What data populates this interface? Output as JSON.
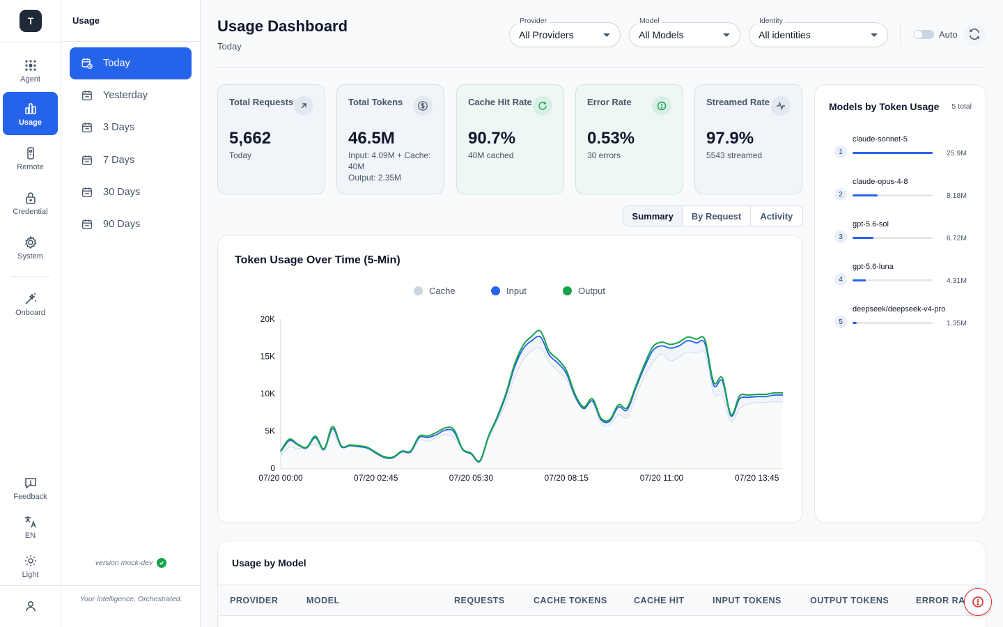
{
  "rail": {
    "logo": "T",
    "items": [
      {
        "label": "Agent",
        "icon": "agent-grid-icon"
      },
      {
        "label": "Usage",
        "icon": "bar-chart-icon",
        "active": true
      },
      {
        "label": "Remote",
        "icon": "remote-icon"
      },
      {
        "label": "Credential",
        "icon": "lock-icon"
      },
      {
        "label": "System",
        "icon": "gear-icon"
      },
      {
        "label": "Onboard",
        "icon": "magic-wand-icon"
      }
    ],
    "bottom": [
      {
        "label": "Feedback",
        "icon": "feedback-icon"
      },
      {
        "label": "EN",
        "icon": "translate-icon"
      },
      {
        "label": "Light",
        "icon": "sun-icon"
      }
    ],
    "profile_icon": "user-icon"
  },
  "subnav": {
    "title": "Usage",
    "ranges": [
      "Today",
      "Yesterday",
      "3 Days",
      "7 Days",
      "30 Days",
      "90 Days"
    ],
    "active": "Today",
    "version": "version mock-dev",
    "tagline": "Your Intelligence, Orchestrated."
  },
  "header": {
    "title": "Usage Dashboard",
    "subtitle": "Today",
    "filters": [
      {
        "label": "Provider",
        "value": "All Providers"
      },
      {
        "label": "Model",
        "value": "All Models"
      },
      {
        "label": "Identity",
        "value": "All identities"
      }
    ],
    "auto_label": "Auto",
    "auto_enabled": false
  },
  "stats": [
    {
      "label": "Total Requests",
      "value": "5,662",
      "sub": "Today",
      "icon": "arrow-up-right-icon",
      "tone": "slate"
    },
    {
      "label": "Total Tokens",
      "value": "46.5M",
      "sub": "Input: 4.09M + Cache: 40M",
      "sub2": "Output: 2.35M",
      "icon": "dollar-icon",
      "tone": "slate"
    },
    {
      "label": "Cache Hit Rate",
      "value": "90.7%",
      "sub": "40M cached",
      "icon": "refresh-icon",
      "tone": "mint"
    },
    {
      "label": "Error Rate",
      "value": "0.53%",
      "sub": "30 errors",
      "icon": "alert-circle-icon",
      "tone": "mint"
    },
    {
      "label": "Streamed Rate",
      "value": "97.9%",
      "sub": "5543 streamed",
      "icon": "activity-icon",
      "tone": "slate"
    }
  ],
  "tabs": [
    "Summary",
    "By Request",
    "Activity"
  ],
  "active_tab": "Summary",
  "chart_data": {
    "type": "line",
    "title": "Token Usage Over Time (5-Min)",
    "xlabel": "",
    "ylabel": "",
    "x_ticks": [
      "07/20 00:00",
      "07/20 02:45",
      "07/20 05:30",
      "07/20 08:15",
      "07/20 11:00",
      "07/20 13:45"
    ],
    "y_ticks": [
      "0",
      "5K",
      "10K",
      "15K",
      "20K"
    ],
    "ylim": [
      0,
      20000
    ],
    "xlim_minutes": [
      0,
      870
    ],
    "legend": "top",
    "grid": false,
    "x_minutes": [
      0,
      15,
      30,
      45,
      60,
      75,
      90,
      105,
      120,
      135,
      150,
      165,
      180,
      195,
      210,
      225,
      240,
      255,
      270,
      285,
      300,
      315,
      330,
      345,
      360,
      375,
      390,
      405,
      420,
      435,
      450,
      465,
      480,
      495,
      510,
      525,
      540,
      555,
      570,
      585,
      600,
      615,
      630,
      645,
      660,
      675,
      690,
      705,
      720,
      735,
      750,
      765,
      780,
      795,
      810,
      825,
      840,
      855,
      870
    ],
    "series": [
      {
        "name": "Cache",
        "color": "#cbd5e1",
        "values": [
          1700,
          2800,
          2600,
          2900,
          3200,
          2400,
          4600,
          2800,
          3000,
          2800,
          2600,
          2300,
          1600,
          1500,
          2200,
          2000,
          3700,
          3600,
          4100,
          4500,
          4100,
          2600,
          2000,
          1000,
          3800,
          6300,
          8700,
          12200,
          14500,
          15800,
          16100,
          14300,
          13000,
          11900,
          9600,
          7900,
          8900,
          6000,
          5800,
          7200,
          6800,
          9600,
          12300,
          14200,
          15300,
          14400,
          14900,
          15600,
          15400,
          15400,
          10000,
          9800,
          6200,
          8000,
          8600,
          8800,
          8800,
          8900,
          8900
        ]
      },
      {
        "name": "Input",
        "color": "#2563eb",
        "values": [
          2200,
          3700,
          3100,
          2700,
          4100,
          2500,
          5300,
          2900,
          3000,
          2900,
          2700,
          2000,
          1400,
          1400,
          2200,
          2200,
          4100,
          4100,
          4500,
          5100,
          4900,
          2500,
          1900,
          900,
          4200,
          6700,
          9700,
          13500,
          16000,
          17100,
          17600,
          15200,
          14100,
          12700,
          9600,
          8000,
          9000,
          6500,
          6300,
          8200,
          7800,
          10700,
          13500,
          15800,
          16400,
          16100,
          16400,
          17100,
          16800,
          16700,
          11100,
          11700,
          7000,
          9300,
          9500,
          9600,
          9600,
          9800,
          9800
        ]
      },
      {
        "name": "Output",
        "color": "#16a34a",
        "values": [
          2300,
          3900,
          3200,
          2800,
          4300,
          2600,
          5600,
          3000,
          3100,
          3000,
          2800,
          2100,
          1500,
          1500,
          2300,
          2300,
          4300,
          4300,
          4800,
          5400,
          5200,
          2600,
          2000,
          1000,
          4300,
          6900,
          10000,
          13900,
          16500,
          17700,
          18400,
          15700,
          14600,
          13100,
          9900,
          8200,
          9300,
          6700,
          6500,
          8500,
          8100,
          11000,
          13900,
          16300,
          16900,
          16600,
          16900,
          17600,
          17300,
          17200,
          11500,
          12100,
          7200,
          9700,
          9800,
          9900,
          9900,
          10100,
          10100
        ]
      }
    ]
  },
  "models": {
    "title": "Models by Token Usage",
    "count": "5 total",
    "items": [
      {
        "rank": "1",
        "name": "claude-sonnet-5",
        "value": "25.9M",
        "share": 1.0
      },
      {
        "rank": "2",
        "name": "claude-opus-4-8",
        "value": "8.18M",
        "share": 0.316
      },
      {
        "rank": "3",
        "name": "gpt-5.6-sol",
        "value": "6.72M",
        "share": 0.259
      },
      {
        "rank": "4",
        "name": "gpt-5.6-luna",
        "value": "4.31M",
        "share": 0.166
      },
      {
        "rank": "5",
        "name": "deepseek/deepseek-v4-pro",
        "value": "1.35M",
        "share": 0.052
      }
    ]
  },
  "table": {
    "title": "Usage by Model",
    "columns": [
      "PROVIDER",
      "MODEL",
      "REQUESTS",
      "CACHE TOKENS",
      "CACHE HIT",
      "INPUT TOKENS",
      "OUTPUT TOKENS",
      "ERROR RATE"
    ]
  }
}
